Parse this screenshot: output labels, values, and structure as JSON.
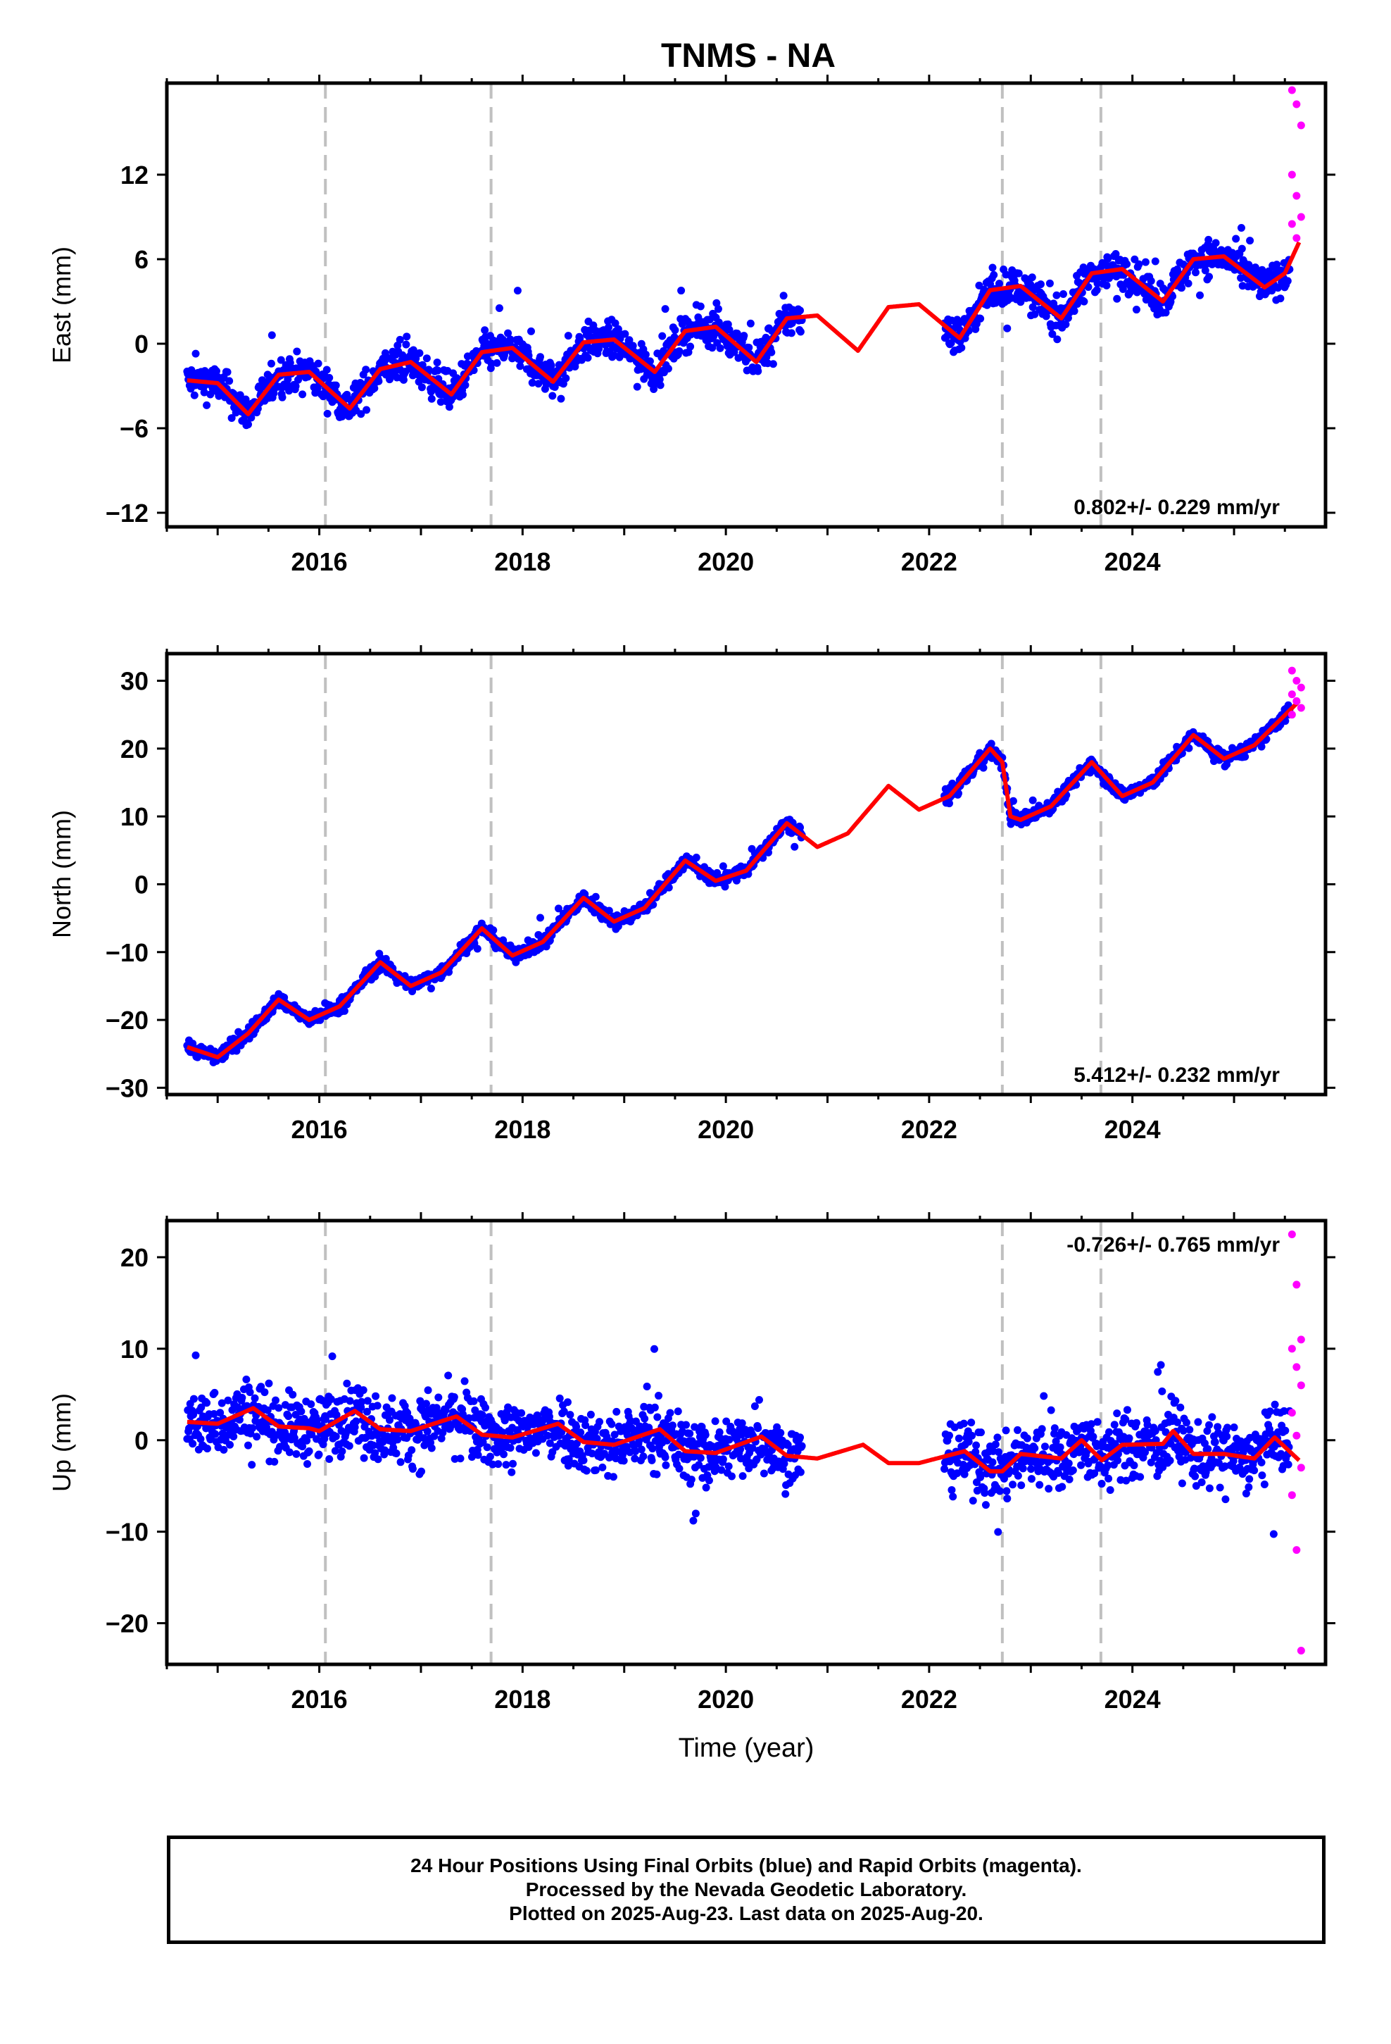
{
  "title": "TNMS - NA",
  "xlabel": "Time (year)",
  "caption": [
    "24 Hour Positions Using Final Orbits (blue) and Rapid Orbits (magenta).",
    "Processed by the Nevada Geodetic Laboratory.",
    "Plotted on 2025-Aug-23. Last data on 2025-Aug-20."
  ],
  "colors": {
    "final": "#0000ff",
    "rapid": "#ff00ff",
    "model": "#ff0000",
    "break_lines": "#c0c0c0"
  },
  "chart_data": [
    {
      "type": "scatter",
      "component": "east",
      "ylabel": "East (mm)",
      "rate_text": "0.802+/- 0.229 mm/yr",
      "xlim": [
        2014.5,
        2025.9
      ],
      "ylim": [
        -13,
        18.5
      ],
      "xticks": [
        2016,
        2018,
        2020,
        2022,
        2024
      ],
      "yticks": [
        -12,
        -6,
        0,
        6,
        12
      ],
      "break_lines_x": [
        2016.06,
        2017.69,
        2022.72,
        2023.69
      ],
      "final_data_range": [
        [
          2014.7,
          2020.75
        ],
        [
          2022.15,
          2025.55
        ]
      ],
      "rapid_data_range": [
        2025.55,
        2025.64
      ],
      "model_curve": [
        [
          2014.7,
          -2.6
        ],
        [
          2015.0,
          -2.8
        ],
        [
          2015.3,
          -5.0
        ],
        [
          2015.6,
          -2.2
        ],
        [
          2015.9,
          -2.0
        ],
        [
          2016.3,
          -4.6
        ],
        [
          2016.6,
          -1.8
        ],
        [
          2016.9,
          -1.3
        ],
        [
          2017.3,
          -3.6
        ],
        [
          2017.6,
          -0.6
        ],
        [
          2017.9,
          -0.3
        ],
        [
          2018.3,
          -2.7
        ],
        [
          2018.6,
          0.1
        ],
        [
          2018.9,
          0.3
        ],
        [
          2019.3,
          -2.0
        ],
        [
          2019.6,
          0.9
        ],
        [
          2019.9,
          1.2
        ],
        [
          2020.3,
          -1.3
        ],
        [
          2020.6,
          1.8
        ],
        [
          2020.9,
          2.0
        ],
        [
          2021.3,
          -0.5
        ],
        [
          2021.6,
          2.6
        ],
        [
          2021.9,
          2.8
        ],
        [
          2022.3,
          0.4
        ],
        [
          2022.6,
          3.8
        ],
        [
          2022.9,
          4.1
        ],
        [
          2023.3,
          1.8
        ],
        [
          2023.6,
          5.0
        ],
        [
          2023.9,
          5.3
        ],
        [
          2024.3,
          3.0
        ],
        [
          2024.6,
          6.0
        ],
        [
          2024.9,
          6.2
        ],
        [
          2025.3,
          4.0
        ],
        [
          2025.5,
          5.0
        ],
        [
          2025.64,
          7.2
        ]
      ],
      "scatter_spread": 1.6,
      "rapid_values": [
        18.0,
        17.0,
        15.5,
        12.0,
        10.5,
        9.0,
        8.5,
        7.5
      ]
    },
    {
      "type": "scatter",
      "component": "north",
      "ylabel": "North (mm)",
      "rate_text": "5.412+/- 0.232 mm/yr",
      "xlim": [
        2014.5,
        2025.9
      ],
      "ylim": [
        -31,
        34
      ],
      "xticks": [
        2016,
        2018,
        2020,
        2022,
        2024
      ],
      "yticks": [
        -30,
        -20,
        -10,
        0,
        10,
        20,
        30
      ],
      "break_lines_x": [
        2016.06,
        2017.69,
        2022.72,
        2023.69
      ],
      "final_data_range": [
        [
          2014.7,
          2020.75
        ],
        [
          2022.15,
          2025.55
        ]
      ],
      "rapid_data_range": [
        2025.55,
        2025.64
      ],
      "model_curve": [
        [
          2014.7,
          -24.0
        ],
        [
          2015.0,
          -25.5
        ],
        [
          2015.3,
          -22.0
        ],
        [
          2015.6,
          -17.0
        ],
        [
          2015.9,
          -20.0
        ],
        [
          2016.2,
          -18.0
        ],
        [
          2016.6,
          -11.5
        ],
        [
          2016.9,
          -15.0
        ],
        [
          2017.2,
          -13.0
        ],
        [
          2017.6,
          -6.5
        ],
        [
          2017.9,
          -10.5
        ],
        [
          2018.2,
          -8.5
        ],
        [
          2018.6,
          -2.0
        ],
        [
          2018.9,
          -5.5
        ],
        [
          2019.2,
          -3.5
        ],
        [
          2019.6,
          3.5
        ],
        [
          2019.9,
          0.5
        ],
        [
          2020.2,
          2.0
        ],
        [
          2020.6,
          9.0
        ],
        [
          2020.9,
          5.5
        ],
        [
          2021.2,
          7.5
        ],
        [
          2021.6,
          14.5
        ],
        [
          2021.9,
          11.0
        ],
        [
          2022.2,
          13.0
        ],
        [
          2022.6,
          20.0
        ],
        [
          2022.72,
          18.0
        ],
        [
          2022.8,
          10.0
        ],
        [
          2022.9,
          9.5
        ],
        [
          2023.2,
          11.5
        ],
        [
          2023.6,
          18.0
        ],
        [
          2023.9,
          13.0
        ],
        [
          2024.2,
          15.0
        ],
        [
          2024.6,
          22.0
        ],
        [
          2024.9,
          18.5
        ],
        [
          2025.2,
          20.5
        ],
        [
          2025.64,
          27.0
        ]
      ],
      "scatter_spread": 1.3,
      "rapid_values": [
        31.5,
        30.0,
        29.0,
        28.0,
        27.0,
        26.0,
        25.0
      ]
    },
    {
      "type": "scatter",
      "component": "up",
      "ylabel": "Up (mm)",
      "rate_text": "-0.726+/- 0.765 mm/yr",
      "xlim": [
        2014.5,
        2025.9
      ],
      "ylim": [
        -24.5,
        24
      ],
      "xticks": [
        2016,
        2018,
        2020,
        2022,
        2024
      ],
      "yticks": [
        -20,
        -10,
        0,
        10,
        20
      ],
      "break_lines_x": [
        2016.06,
        2017.69,
        2022.72,
        2023.69
      ],
      "final_data_range": [
        [
          2014.7,
          2020.75
        ],
        [
          2022.15,
          2025.55
        ]
      ],
      "rapid_data_range": [
        2025.55,
        2025.64
      ],
      "model_curve": [
        [
          2014.7,
          2.0
        ],
        [
          2015.0,
          1.8
        ],
        [
          2015.35,
          3.5
        ],
        [
          2015.6,
          1.5
        ],
        [
          2015.9,
          1.3
        ],
        [
          2016.0,
          1.0
        ],
        [
          2016.35,
          3.2
        ],
        [
          2016.6,
          1.2
        ],
        [
          2016.9,
          1.0
        ],
        [
          2017.35,
          2.6
        ],
        [
          2017.6,
          0.6
        ],
        [
          2017.9,
          0.3
        ],
        [
          2018.35,
          1.8
        ],
        [
          2018.6,
          -0.2
        ],
        [
          2018.9,
          -0.5
        ],
        [
          2019.35,
          1.2
        ],
        [
          2019.6,
          -1.2
        ],
        [
          2019.9,
          -1.4
        ],
        [
          2020.35,
          0.4
        ],
        [
          2020.6,
          -1.7
        ],
        [
          2020.9,
          -2.0
        ],
        [
          2021.35,
          -0.5
        ],
        [
          2021.6,
          -2.5
        ],
        [
          2021.9,
          -2.5
        ],
        [
          2022.35,
          -1.2
        ],
        [
          2022.6,
          -3.4
        ],
        [
          2022.72,
          -3.4
        ],
        [
          2022.9,
          -1.5
        ],
        [
          2023.3,
          -2.0
        ],
        [
          2023.5,
          0.0
        ],
        [
          2023.7,
          -2.2
        ],
        [
          2023.9,
          -0.5
        ],
        [
          2024.3,
          -0.4
        ],
        [
          2024.4,
          1.0
        ],
        [
          2024.6,
          -1.5
        ],
        [
          2024.9,
          -1.5
        ],
        [
          2025.2,
          -2.0
        ],
        [
          2025.4,
          0.3
        ],
        [
          2025.64,
          -2.2
        ]
      ],
      "scatter_spread": 4.5,
      "rapid_values": [
        22.5,
        17.0,
        11.0,
        10.0,
        8.0,
        6.0,
        3.0,
        0.5,
        -3.0,
        -6.0,
        -12.0,
        -23.0
      ]
    }
  ]
}
